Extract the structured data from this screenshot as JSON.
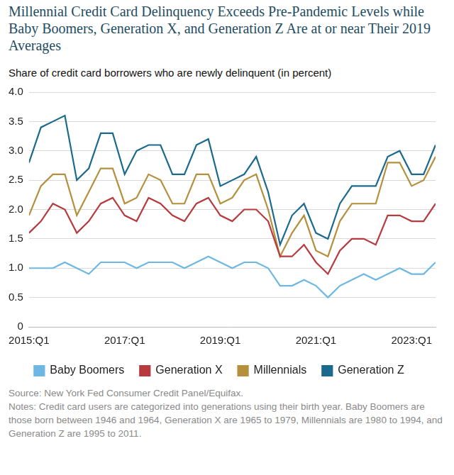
{
  "chart_data": {
    "type": "line",
    "title": "Millennial Credit Card Delinquency Exceeds Pre-Pandemic Levels while Baby Boomers, Generation X, and Generation Z Are at or near Their 2019 Averages",
    "subtitle": "Share of credit card borrowers who are newly delinquent (in percent)",
    "source": "Source: New York Fed Consumer Credit Panel/Equifax.",
    "notes": "Notes: Credit card users are categorized into generations using their birth year. Baby Boomers are those born between 1946 and 1964, Generation X are 1965 to 1979, Millennials are 1980 to 1994, and Generation Z are 1995 to 2011.",
    "categories": [
      "2015:Q1",
      null,
      null,
      null,
      null,
      null,
      null,
      null,
      "2017:Q1",
      null,
      null,
      null,
      null,
      null,
      null,
      null,
      "2019:Q1",
      null,
      null,
      null,
      null,
      null,
      null,
      null,
      "2021:Q1",
      null,
      null,
      null,
      null,
      null,
      null,
      null,
      "2023:Q1",
      null,
      null
    ],
    "series": [
      {
        "name": "Baby Boomers",
        "color": "#6cb8e2",
        "values": [
          1.0,
          1.0,
          1.0,
          1.1,
          1.0,
          0.9,
          1.1,
          1.1,
          1.1,
          1.0,
          1.1,
          1.1,
          1.1,
          1.0,
          1.1,
          1.2,
          1.1,
          1.0,
          1.1,
          1.1,
          1.0,
          0.7,
          0.7,
          0.8,
          0.7,
          0.5,
          0.7,
          0.8,
          0.9,
          0.8,
          0.9,
          1.0,
          0.9,
          0.9,
          1.1
        ]
      },
      {
        "name": "Generation X",
        "color": "#b83a3f",
        "values": [
          1.6,
          1.8,
          2.1,
          2.0,
          1.6,
          1.8,
          2.1,
          2.2,
          1.9,
          1.8,
          2.2,
          2.1,
          1.9,
          1.8,
          2.1,
          2.2,
          1.9,
          1.8,
          2.0,
          2.0,
          1.8,
          1.2,
          1.2,
          1.4,
          1.1,
          0.9,
          1.3,
          1.5,
          1.5,
          1.4,
          1.9,
          1.9,
          1.8,
          1.8,
          2.1
        ]
      },
      {
        "name": "Millennials",
        "color": "#b58f3b",
        "values": [
          1.9,
          2.4,
          2.6,
          2.6,
          1.9,
          2.3,
          2.7,
          2.7,
          2.1,
          2.2,
          2.6,
          2.5,
          2.1,
          2.1,
          2.6,
          2.6,
          2.1,
          2.2,
          2.5,
          2.6,
          2.0,
          1.2,
          1.6,
          1.9,
          1.3,
          1.2,
          1.8,
          2.1,
          2.1,
          2.1,
          2.8,
          2.8,
          2.4,
          2.5,
          2.9
        ]
      },
      {
        "name": "Generation Z",
        "color": "#1b6a8e",
        "values": [
          2.8,
          3.4,
          3.5,
          3.6,
          2.5,
          2.7,
          3.3,
          3.3,
          2.6,
          3.0,
          3.1,
          3.1,
          2.6,
          2.6,
          3.1,
          3.2,
          2.4,
          2.5,
          2.6,
          2.9,
          2.3,
          1.4,
          1.9,
          2.1,
          1.6,
          1.5,
          2.1,
          2.4,
          2.4,
          2.4,
          2.9,
          3.0,
          2.6,
          2.6,
          3.1
        ]
      }
    ],
    "ylim": [
      0,
      4
    ],
    "yticks": [
      0,
      0.5,
      {
        "value": 1,
        "label": "1.0"
      },
      1.5,
      {
        "value": 2,
        "label": "2.0"
      },
      2.5,
      {
        "value": 3,
        "label": "3.0"
      },
      3.5,
      {
        "value": 4,
        "label": "4.0"
      }
    ],
    "grid": true,
    "legend": "bottom"
  }
}
